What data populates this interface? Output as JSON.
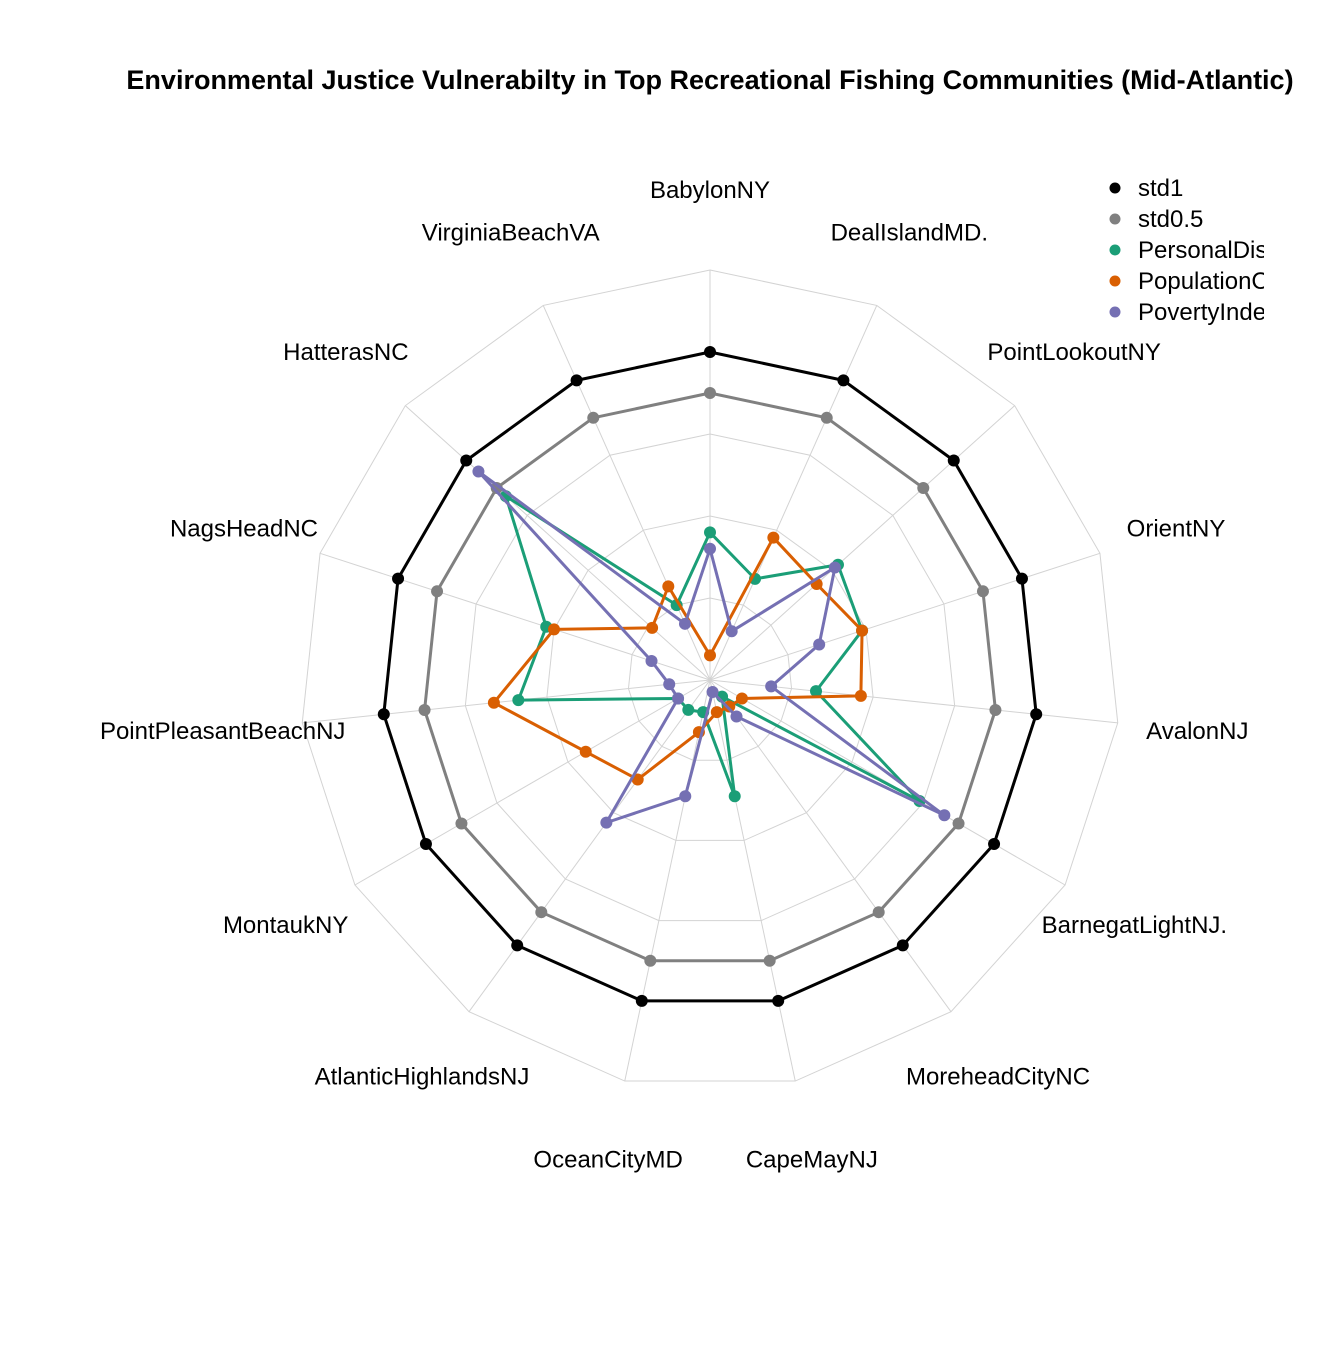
{
  "chart_data": {
    "type": "radar",
    "title": "Environmental Justice Vulnerabilty in Top Recreational Fishing Communities (Mid-Atlantic)",
    "categories": [
      "BabylonNY",
      "DealIslandMD.",
      "PointLookoutNY",
      "OrientNY",
      "AvalonNJ",
      "BarnegatLightNJ.",
      "MoreheadCityNC",
      "CapeMayNJ",
      "OceanCityMD",
      "AtlanticHighlandsNJ",
      "MontaukNY",
      "PointPleasantBeachNJ",
      "NagsHeadNC",
      "HatterasNC",
      "VirginiaBeachVA"
    ],
    "rlim": [
      -3,
      2
    ],
    "grid": true,
    "legend_position": "top-right",
    "series": [
      {
        "name": "std1",
        "color": "#000000",
        "values": [
          1,
          1,
          1,
          1,
          1,
          1,
          1,
          1,
          1,
          1,
          1,
          1,
          1,
          1,
          1
        ]
      },
      {
        "name": "std0.5",
        "color": "#808080",
        "values": [
          0.5,
          0.5,
          0.5,
          0.5,
          0.5,
          0.5,
          0.5,
          0.5,
          0.5,
          0.5,
          0.5,
          0.5,
          0.5,
          0.5,
          0.5
        ]
      },
      {
        "name": "PersonalDisruption",
        "color": "#1B9E77",
        "values": [
          -1.2,
          -1.65,
          -0.9,
          -1.05,
          -1.7,
          -0.05,
          -2.75,
          -1.55,
          -2.6,
          -2.55,
          -2.55,
          -0.65,
          -0.9,
          0.35,
          -2.0
        ]
      },
      {
        "name": "PopulationComposition",
        "color": "#D95F02",
        "values": [
          -2.7,
          -1.1,
          -1.25,
          -1.05,
          -1.15,
          -2.55,
          -2.6,
          -2.6,
          -2.35,
          -1.5,
          -1.25,
          -0.35,
          -1.0,
          -2.05,
          -1.75
        ]
      },
      {
        "name": "PovertyIndex",
        "color": "#7570B3",
        "values": [
          -1.4,
          -2.35,
          -0.95,
          -1.6,
          -2.25,
          0.3,
          -2.45,
          -2.85,
          -1.55,
          -0.85,
          -2.55,
          -2.5,
          -2.25,
          0.8,
          -2.25
        ]
      }
    ]
  }
}
